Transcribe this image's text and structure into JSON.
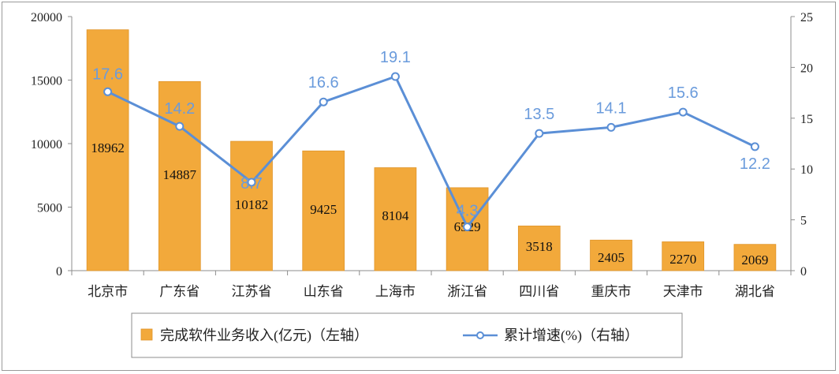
{
  "chart_data": {
    "type": "bar",
    "categories": [
      "北京市",
      "广东省",
      "江苏省",
      "山东省",
      "上海市",
      "浙江省",
      "四川省",
      "重庆市",
      "天津市",
      "湖北省"
    ],
    "series": [
      {
        "name": "完成软件业务收入(亿元)（左轴）",
        "type": "bar",
        "axis": "left",
        "values": [
          18962,
          14887,
          10182,
          9425,
          8104,
          6529,
          3518,
          2405,
          2270,
          2069
        ],
        "labels": [
          "18962",
          "14887",
          "10182",
          "9425",
          "8104",
          "6529",
          "3518",
          "2405",
          "2270",
          "2069"
        ]
      },
      {
        "name": "累计增速(%)（右轴）",
        "type": "line",
        "axis": "right",
        "values": [
          17.6,
          14.2,
          8.7,
          16.6,
          19.1,
          4.3,
          13.5,
          14.1,
          15.6,
          12.2
        ],
        "labels": [
          "17.6",
          "14.2",
          "8.7",
          "16.6",
          "19.1",
          "4.3",
          "13.5",
          "14.1",
          "15.6",
          "12.2"
        ]
      }
    ],
    "y_left": {
      "min": 0,
      "max": 20000,
      "ticks": [
        0,
        5000,
        10000,
        15000,
        20000
      ]
    },
    "y_right": {
      "min": 0,
      "max": 25,
      "ticks": [
        0,
        5,
        10,
        15,
        20,
        25
      ]
    },
    "grid": false,
    "legend_position": "bottom",
    "colors": {
      "bar": "#F2A93B",
      "bar_edge": "#E0952A",
      "line": "#5B8FD6",
      "label_line": "#6A9BDC"
    }
  }
}
